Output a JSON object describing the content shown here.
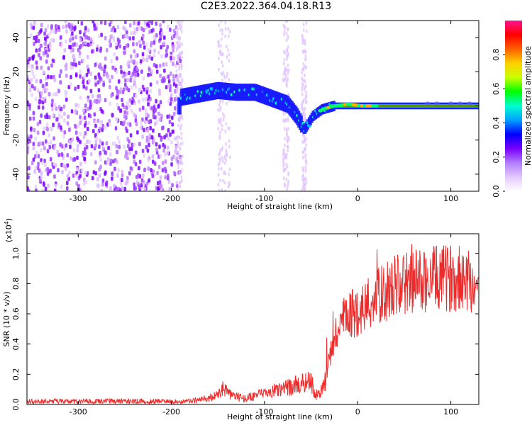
{
  "title": "C2E3.2022.364.04.18.R13",
  "chart_data": [
    {
      "type": "heatmap",
      "xlabel": "Height of straight line (km)",
      "ylabel": "Frequency (Hz)",
      "xlim": [
        -355,
        130
      ],
      "ylim": [
        -50,
        50
      ],
      "xticks": [
        -300,
        -200,
        -100,
        0,
        100
      ],
      "yticks": [
        -40,
        -20,
        0,
        20,
        40
      ],
      "colorbar": {
        "label": "Normalized spectral amplitude",
        "range": [
          0.0,
          1.0
        ],
        "ticks": [
          "0.0",
          "0.2",
          "0.4",
          "0.6",
          "0.8"
        ],
        "tick_values": [
          0.0,
          0.2,
          0.4,
          0.6,
          0.8
        ],
        "colors": [
          "#ffffff",
          "#e3c9ff",
          "#b27cff",
          "#7a00ff",
          "#0000ff",
          "#00a0ff",
          "#00ffd0",
          "#00ff00",
          "#c8ff00",
          "#ffd000",
          "#ff6000",
          "#ff0000",
          "#ff1493"
        ]
      },
      "ridge": [
        {
          "x": -190,
          "f": 5
        },
        {
          "x": -170,
          "f": 7
        },
        {
          "x": -150,
          "f": 9
        },
        {
          "x": -130,
          "f": 8
        },
        {
          "x": -110,
          "f": 8
        },
        {
          "x": -90,
          "f": 4
        },
        {
          "x": -75,
          "f": 1
        },
        {
          "x": -65,
          "f": -6
        },
        {
          "x": -57,
          "f": -14
        },
        {
          "x": -48,
          "f": -6
        },
        {
          "x": -38,
          "f": -2
        },
        {
          "x": -25,
          "f": 0
        },
        {
          "x": -10,
          "f": 1
        },
        {
          "x": 5,
          "f": 0
        },
        {
          "x": 130,
          "f": 0
        }
      ]
    },
    {
      "type": "line",
      "xlabel": "Height of straight line (km)",
      "ylabel": "SNR (10 * v/v)",
      "exponent_label": "(x10",
      "exponent_power": "4",
      "exponent_close": ")",
      "xlim": [
        -355,
        130
      ],
      "ylim": [
        0,
        1.13
      ],
      "xticks": [
        -300,
        -200,
        -100,
        0,
        100
      ],
      "yticks": [
        "0.0",
        "0.2",
        "0.4",
        "0.6",
        "0.8",
        "1.0"
      ],
      "ytick_values": [
        0.0,
        0.2,
        0.4,
        0.6,
        0.8,
        1.0
      ],
      "color": "#ee2b2b",
      "series": [
        {
          "x": [
            -355,
            -300,
            -250,
            -200,
            -180,
            -160,
            -150,
            -145,
            -140,
            -130,
            -120,
            -110,
            -100,
            -90,
            -80,
            -70,
            -60,
            -50,
            -45,
            -40,
            -35,
            -30,
            -25,
            -20,
            -15,
            -10,
            -5,
            0,
            10,
            20,
            30,
            40,
            50,
            60,
            70,
            80,
            90,
            100,
            110,
            120,
            130
          ],
          "y": [
            0.02,
            0.02,
            0.02,
            0.02,
            0.02,
            0.04,
            0.06,
            0.1,
            0.08,
            0.05,
            0.04,
            0.06,
            0.07,
            0.09,
            0.1,
            0.12,
            0.14,
            0.16,
            0.06,
            0.08,
            0.15,
            0.3,
            0.45,
            0.5,
            0.55,
            0.58,
            0.6,
            0.62,
            0.65,
            0.7,
            0.75,
            0.78,
            0.8,
            0.82,
            0.82,
            0.83,
            0.83,
            0.84,
            0.84,
            0.83,
            0.75
          ]
        }
      ]
    }
  ]
}
